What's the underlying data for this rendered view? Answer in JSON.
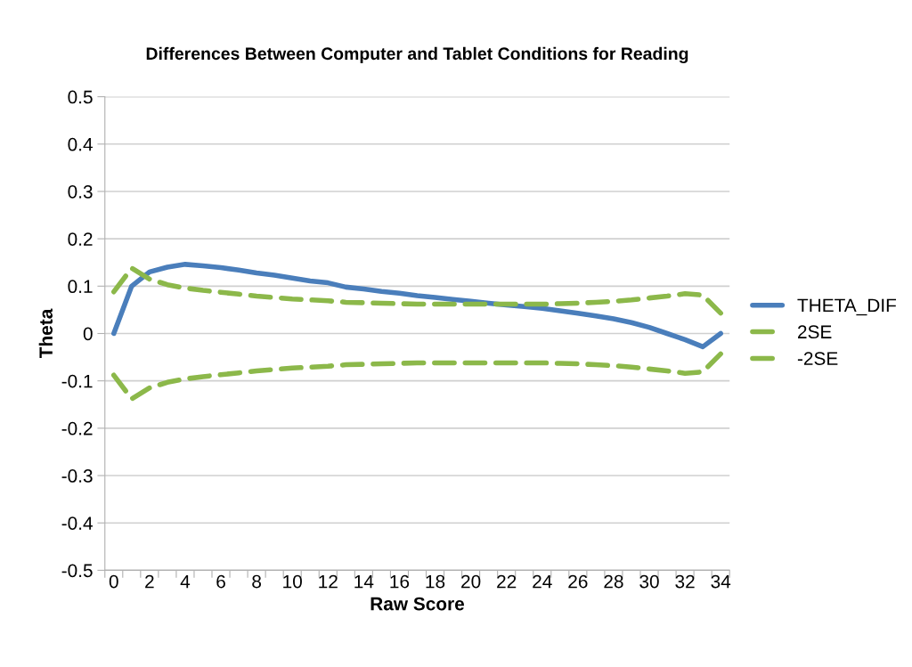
{
  "chart_data": {
    "type": "line",
    "title": "Differences Between Computer and Tablet Conditions for Reading",
    "xlabel": "Raw Score",
    "ylabel": "Theta",
    "categories": [
      "0",
      null,
      "2",
      null,
      "4",
      null,
      "6",
      null,
      "8",
      null,
      "10",
      null,
      "12",
      null,
      "14",
      null,
      "16",
      null,
      "18",
      null,
      "20",
      null,
      "22",
      null,
      "24",
      null,
      "26",
      null,
      "28",
      null,
      "30",
      null,
      "32",
      null,
      "34"
    ],
    "series": [
      {
        "name": "THETA_DIF",
        "color": "#4a7ebb",
        "line_style": "solid",
        "values": [
          0,
          0.1,
          0.13,
          0.14,
          0.146,
          0.143,
          0.139,
          0.134,
          0.128,
          0.123,
          0.117,
          0.111,
          0.107,
          0.098,
          0.094,
          0.089,
          0.085,
          0.08,
          0.076,
          0.072,
          0.068,
          0.064,
          0.06,
          0.057,
          0.053,
          0.048,
          0.043,
          0.037,
          0.031,
          0.023,
          0.013,
          0.0,
          -0.013,
          -0.028,
          0.0
        ]
      },
      {
        "name": "2SE",
        "color": "#8cb84a",
        "line_style": "dashed",
        "values": [
          0.088,
          0.138,
          0.115,
          0.103,
          0.096,
          0.091,
          0.087,
          0.083,
          0.079,
          0.076,
          0.073,
          0.071,
          0.069,
          0.066,
          0.065,
          0.064,
          0.063,
          0.062,
          0.062,
          0.062,
          0.062,
          0.062,
          0.062,
          0.062,
          0.062,
          0.063,
          0.064,
          0.066,
          0.068,
          0.071,
          0.075,
          0.079,
          0.084,
          0.081,
          0.043
        ]
      },
      {
        "name": "-2SE",
        "color": "#8cb84a",
        "line_style": "dashed",
        "values": [
          -0.088,
          -0.138,
          -0.115,
          -0.103,
          -0.096,
          -0.091,
          -0.087,
          -0.083,
          -0.079,
          -0.076,
          -0.073,
          -0.071,
          -0.069,
          -0.066,
          -0.065,
          -0.064,
          -0.063,
          -0.062,
          -0.062,
          -0.062,
          -0.062,
          -0.062,
          -0.062,
          -0.062,
          -0.062,
          -0.063,
          -0.064,
          -0.066,
          -0.068,
          -0.071,
          -0.075,
          -0.079,
          -0.084,
          -0.081,
          -0.043
        ]
      }
    ],
    "ylim": [
      -0.5,
      0.5
    ],
    "yticks": [
      0.5,
      0.4,
      0.3,
      0.2,
      0.1,
      0,
      -0.1,
      -0.2,
      -0.3,
      -0.4,
      -0.5
    ],
    "grid": "y",
    "legend": "right"
  }
}
